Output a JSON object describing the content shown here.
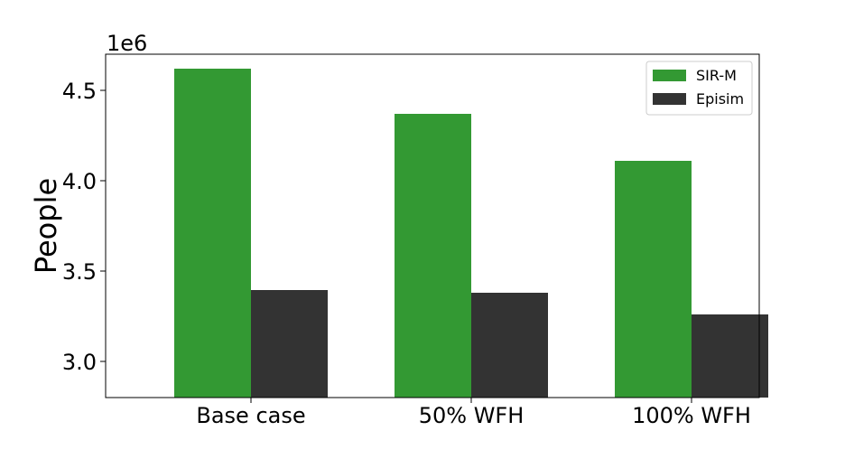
{
  "chart_data": {
    "type": "bar",
    "categories": [
      "Base case",
      "50% WFH",
      "100% WFH"
    ],
    "series": [
      {
        "name": "SIR-M",
        "values": [
          4620000,
          4370000,
          4110000
        ],
        "color": "#339933"
      },
      {
        "name": "Episim",
        "values": [
          3395000,
          3380000,
          3260000
        ],
        "color": "#333333"
      }
    ],
    "title": "",
    "xlabel": "",
    "ylabel": "People",
    "y_scale_label": "1e6",
    "ylim": [
      2.8,
      4.7
    ],
    "y_ticks": [
      3.0,
      3.5,
      4.0,
      4.5
    ],
    "y_tick_labels": [
      "3.0",
      "3.5",
      "4.0",
      "4.5"
    ],
    "y_scale_factor": 1000000,
    "grid": false,
    "legend_position": "top-right"
  }
}
